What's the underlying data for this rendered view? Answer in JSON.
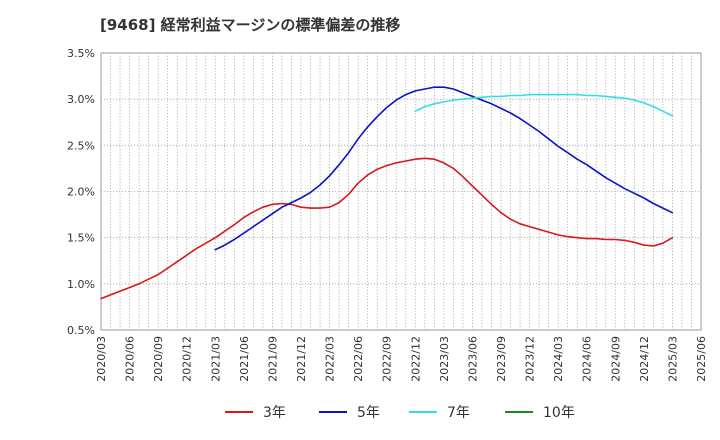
{
  "chart_data": {
    "type": "line",
    "title": "[9468]  経常利益マージンの標準偏差の推移",
    "xlabel": "",
    "ylabel": "",
    "ylim": [
      0.5,
      3.5
    ],
    "y_ticks": [
      "0.5%",
      "1.0%",
      "1.5%",
      "2.0%",
      "2.5%",
      "3.0%",
      "3.5%"
    ],
    "x_ticks": [
      "2020/03",
      "2020/06",
      "2020/09",
      "2020/12",
      "2021/03",
      "2021/06",
      "2021/09",
      "2021/12",
      "2022/03",
      "2022/06",
      "2022/09",
      "2022/12",
      "2023/03",
      "2023/06",
      "2023/09",
      "2023/12",
      "2024/03",
      "2024/06",
      "2024/09",
      "2024/12",
      "2025/03",
      "2025/06"
    ],
    "grid": true,
    "legend_position": "bottom",
    "series": [
      {
        "name": "3年",
        "color": "#d7191c",
        "x": [
          "2020/03",
          "2020/04",
          "2020/05",
          "2020/06",
          "2020/07",
          "2020/08",
          "2020/09",
          "2020/10",
          "2020/11",
          "2020/12",
          "2021/01",
          "2021/02",
          "2021/03",
          "2021/04",
          "2021/05",
          "2021/06",
          "2021/07",
          "2021/08",
          "2021/09",
          "2021/10",
          "2021/11",
          "2021/12",
          "2022/01",
          "2022/02",
          "2022/03",
          "2022/04",
          "2022/05",
          "2022/06",
          "2022/07",
          "2022/08",
          "2022/09",
          "2022/10",
          "2022/11",
          "2022/12",
          "2023/01",
          "2023/02",
          "2023/03",
          "2023/04",
          "2023/05",
          "2023/06",
          "2023/07",
          "2023/08",
          "2023/09",
          "2023/10",
          "2023/11",
          "2023/12",
          "2024/01",
          "2024/02",
          "2024/03",
          "2024/04",
          "2024/05",
          "2024/06",
          "2024/07",
          "2024/08",
          "2024/09",
          "2024/10",
          "2024/11",
          "2024/12",
          "2025/01",
          "2025/02",
          "2025/03"
        ],
        "values": [
          0.84,
          0.88,
          0.92,
          0.96,
          1.0,
          1.05,
          1.1,
          1.17,
          1.24,
          1.31,
          1.38,
          1.44,
          1.5,
          1.57,
          1.64,
          1.72,
          1.78,
          1.83,
          1.86,
          1.87,
          1.86,
          1.83,
          1.82,
          1.82,
          1.83,
          1.88,
          1.97,
          2.09,
          2.18,
          2.24,
          2.28,
          2.31,
          2.33,
          2.35,
          2.36,
          2.35,
          2.31,
          2.25,
          2.16,
          2.06,
          1.96,
          1.86,
          1.77,
          1.7,
          1.65,
          1.62,
          1.59,
          1.56,
          1.53,
          1.51,
          1.5,
          1.49,
          1.49,
          1.48,
          1.48,
          1.47,
          1.45,
          1.42,
          1.41,
          1.44,
          1.5
        ]
      },
      {
        "name": "5年",
        "color": "#0a14c8",
        "x": [
          "2021/03",
          "2021/04",
          "2021/05",
          "2021/06",
          "2021/07",
          "2021/08",
          "2021/09",
          "2021/10",
          "2021/11",
          "2021/12",
          "2022/01",
          "2022/02",
          "2022/03",
          "2022/04",
          "2022/05",
          "2022/06",
          "2022/07",
          "2022/08",
          "2022/09",
          "2022/10",
          "2022/11",
          "2022/12",
          "2023/01",
          "2023/02",
          "2023/03",
          "2023/04",
          "2023/05",
          "2023/06",
          "2023/07",
          "2023/08",
          "2023/09",
          "2023/10",
          "2023/11",
          "2023/12",
          "2024/01",
          "2024/02",
          "2024/03",
          "2024/04",
          "2024/05",
          "2024/06",
          "2024/07",
          "2024/08",
          "2024/09",
          "2024/10",
          "2024/11",
          "2024/12",
          "2025/01",
          "2025/02",
          "2025/03"
        ],
        "values": [
          1.37,
          1.42,
          1.48,
          1.55,
          1.62,
          1.69,
          1.76,
          1.83,
          1.88,
          1.93,
          1.99,
          2.07,
          2.17,
          2.29,
          2.42,
          2.57,
          2.7,
          2.81,
          2.91,
          2.99,
          3.05,
          3.09,
          3.11,
          3.13,
          3.13,
          3.11,
          3.07,
          3.03,
          2.99,
          2.95,
          2.9,
          2.85,
          2.79,
          2.72,
          2.65,
          2.57,
          2.49,
          2.42,
          2.35,
          2.29,
          2.22,
          2.15,
          2.09,
          2.03,
          1.98,
          1.93,
          1.87,
          1.82,
          1.77
        ]
      },
      {
        "name": "7年",
        "color": "#33dfe6",
        "x": [
          "2022/12",
          "2023/01",
          "2023/02",
          "2023/03",
          "2023/04",
          "2023/05",
          "2023/06",
          "2023/07",
          "2023/08",
          "2023/09",
          "2023/10",
          "2023/11",
          "2023/12",
          "2024/01",
          "2024/02",
          "2024/03",
          "2024/04",
          "2024/05",
          "2024/06",
          "2024/07",
          "2024/08",
          "2024/09",
          "2024/10",
          "2024/11",
          "2024/12",
          "2025/01",
          "2025/02",
          "2025/03"
        ],
        "values": [
          2.87,
          2.92,
          2.95,
          2.97,
          2.99,
          3.0,
          3.01,
          3.02,
          3.03,
          3.03,
          3.04,
          3.04,
          3.05,
          3.05,
          3.05,
          3.05,
          3.05,
          3.05,
          3.04,
          3.04,
          3.03,
          3.02,
          3.01,
          2.99,
          2.96,
          2.92,
          2.87,
          2.82
        ]
      },
      {
        "name": "10年",
        "color": "#1a8a1a",
        "x": [],
        "values": []
      }
    ]
  }
}
